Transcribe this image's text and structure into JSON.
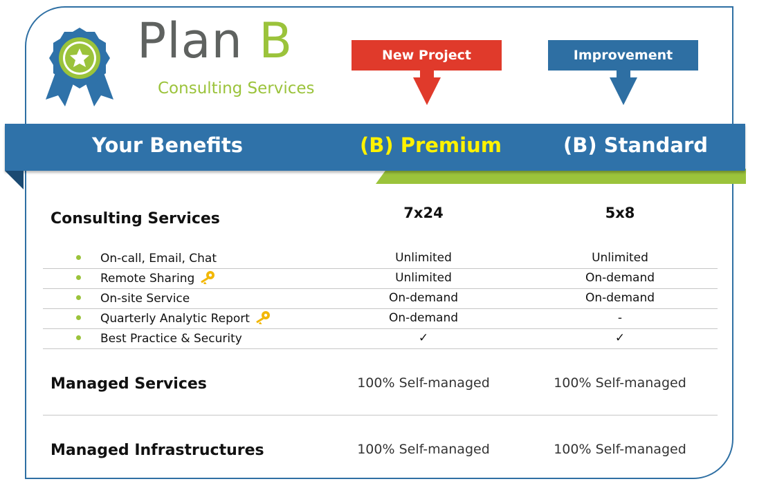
{
  "brand": {
    "title_main": "Plan ",
    "title_accent": "B",
    "subtitle": "Consulting Services",
    "logo_icon": "ribbon-star-icon"
  },
  "tags": {
    "new_project": "New Project",
    "improvement": "Improvement"
  },
  "header": {
    "benefits": "Your Benefits",
    "premium": "(B) Premium",
    "standard": "(B) Standard"
  },
  "consulting": {
    "title": "Consulting Services",
    "premium_hours": "7x24",
    "standard_hours": "5x8",
    "rows": [
      {
        "label": "On-call, Email, Chat",
        "premium": "Unlimited",
        "standard": "Unlimited",
        "key": false
      },
      {
        "label": "Remote Sharing",
        "premium": "Unlimited",
        "standard": "On-demand",
        "key": true
      },
      {
        "label": "On-site Service",
        "premium": "On-demand",
        "standard": "On-demand",
        "key": false
      },
      {
        "label": "Quarterly Analytic Report",
        "premium": "On-demand",
        "standard": "-",
        "key": true
      },
      {
        "label": "Best Practice & Security",
        "premium": "✓",
        "standard": "✓",
        "key": false
      }
    ]
  },
  "managed_services": {
    "title": "Managed Services",
    "premium": "100% Self-managed",
    "standard": "100% Self-managed"
  },
  "managed_infra": {
    "title": "Managed Infrastructures",
    "premium": "100% Self-managed",
    "standard": "100% Self-managed"
  },
  "colors": {
    "blue": "#2f72a9",
    "green": "#9bc33b",
    "red": "#e03a2b",
    "yellow": "#fff200"
  }
}
